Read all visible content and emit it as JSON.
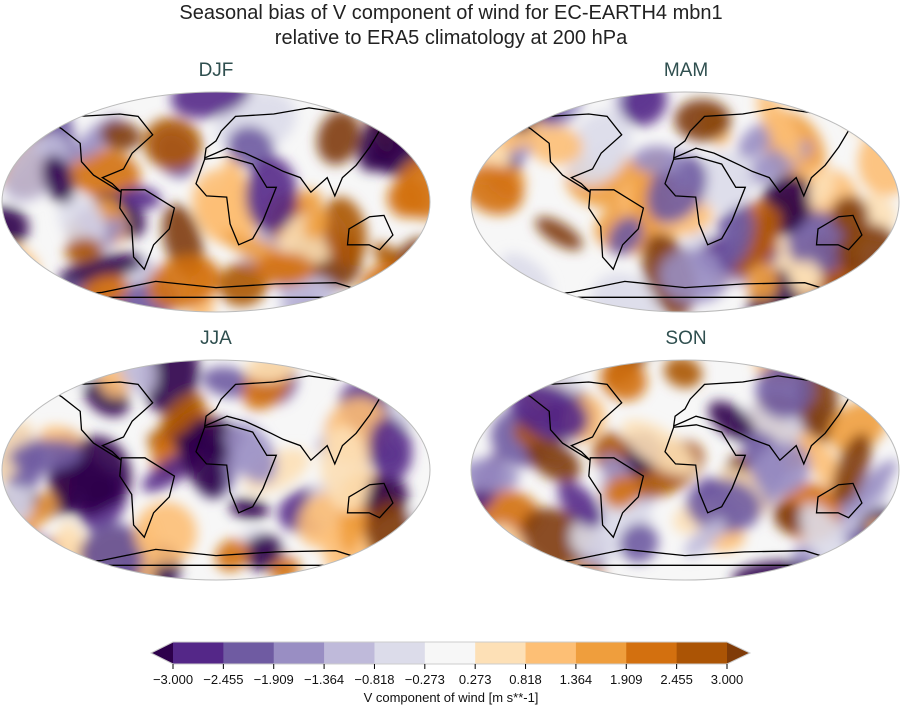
{
  "title_line1": "Seasonal bias of V component of wind for EC-EARTH4 mbn1",
  "title_line2": "relative to ERA5 climatology at 200 hPa",
  "panels": [
    {
      "title": "DJF"
    },
    {
      "title": "MAM"
    },
    {
      "title": "JJA"
    },
    {
      "title": "SON"
    }
  ],
  "colorbar": {
    "label": "V component of wind [m s**-1]",
    "ticks": [
      "−3.000",
      "−2.455",
      "−1.909",
      "−1.364",
      "−0.818",
      "−0.273",
      "0.273",
      "0.818",
      "1.364",
      "1.909",
      "2.455",
      "3.000"
    ],
    "levels": [
      -3.0,
      -2.455,
      -1.909,
      -1.364,
      -0.818,
      -0.273,
      0.273,
      0.818,
      1.364,
      1.909,
      2.455,
      3.0
    ],
    "extend": "both",
    "colormap": "PuOr_r",
    "colors": [
      "#542788",
      "#6f5ba2",
      "#998ec3",
      "#bfbada",
      "#dcdcea",
      "#f7f7f7",
      "#fde0b6",
      "#fdbf75",
      "#ef9e3d",
      "#d3700f",
      "#ab5405"
    ],
    "under_color": "#2d004b",
    "over_color": "#7f3b08"
  },
  "projection": "Robinson"
}
